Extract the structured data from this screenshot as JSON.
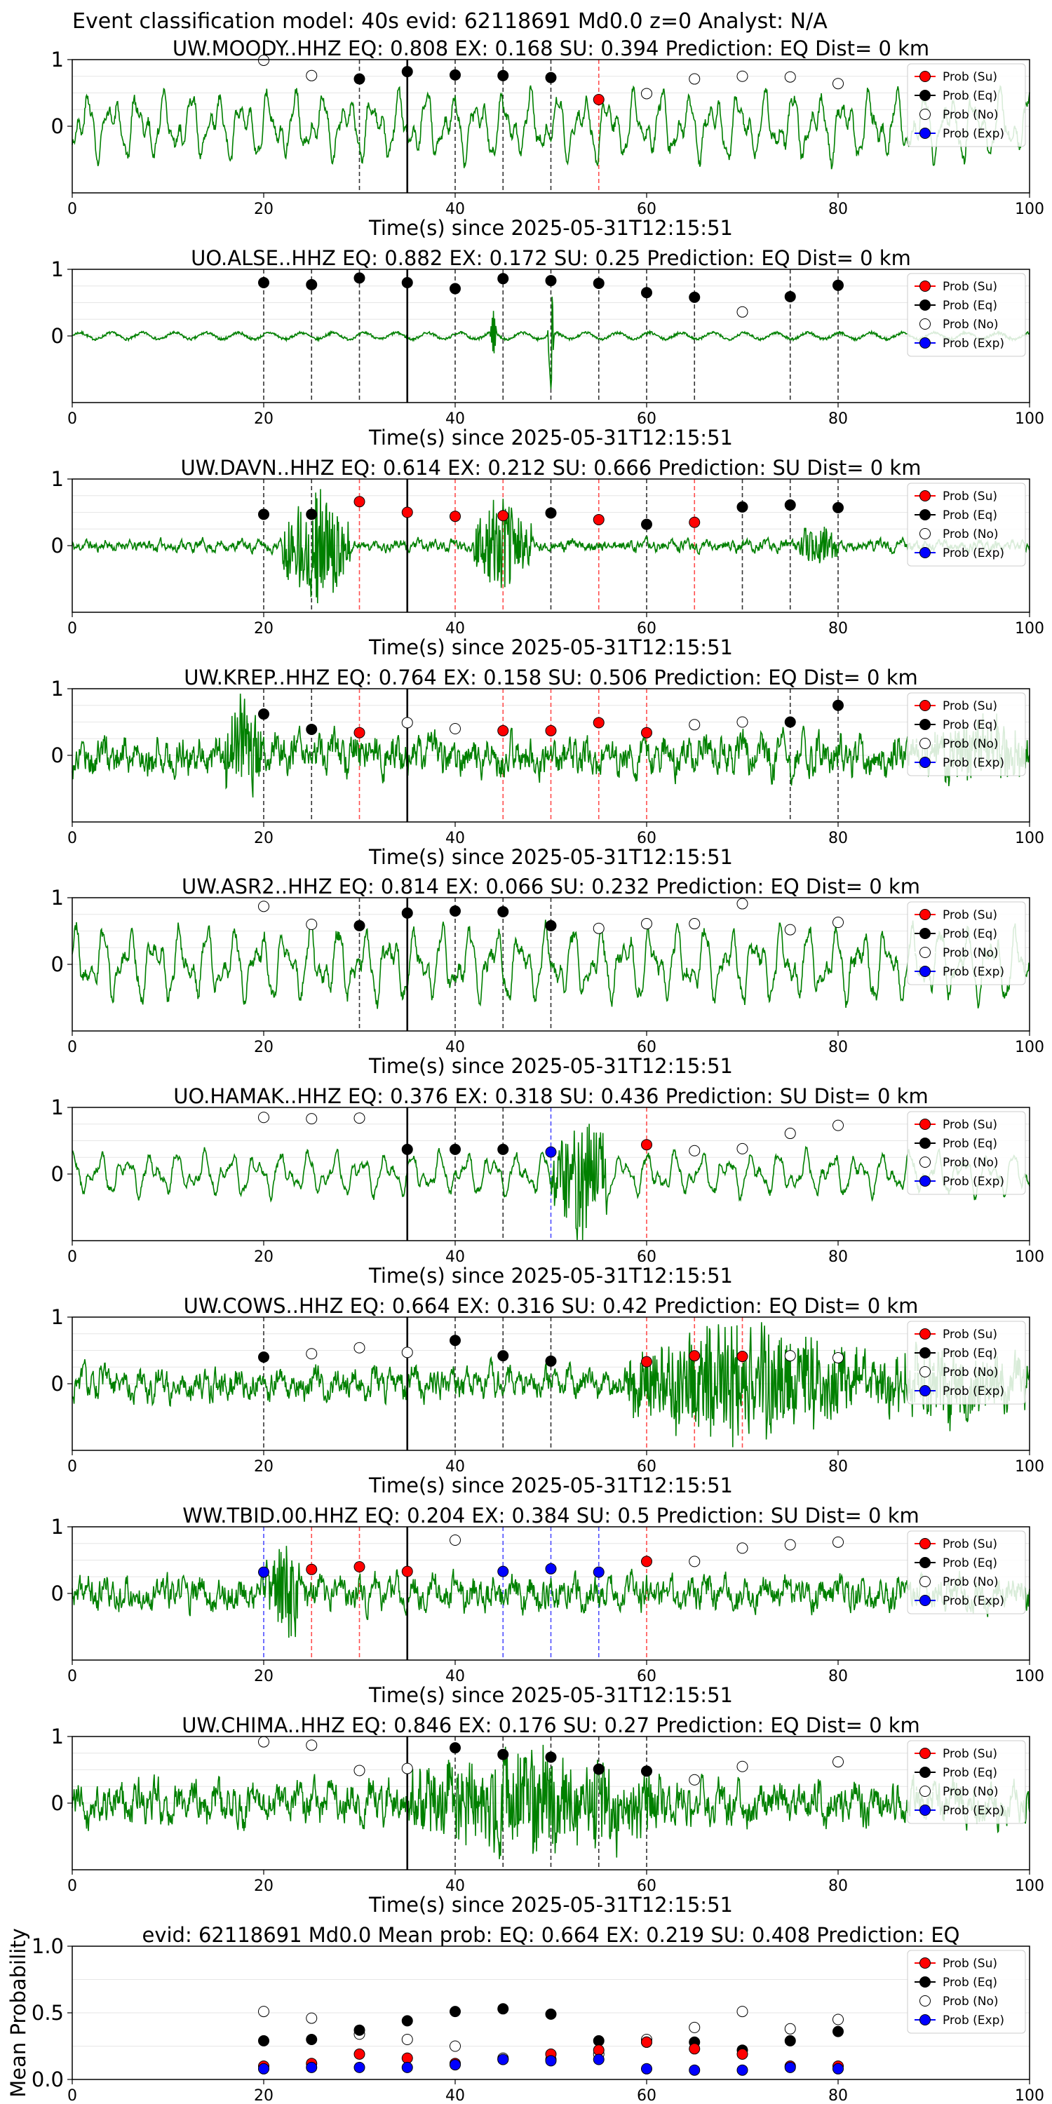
{
  "figure": {
    "suptitle": "Event classification model: 40s evid: 62118691 Md0.0 z=0 Analyst: N/A"
  },
  "legend_labels": [
    "Prob (Su)",
    "Prob (Eq)",
    "Prob (No)",
    "Prob (Exp)"
  ],
  "colors": {
    "su": "#ff0000",
    "eq": "#000000",
    "no": "#ffffff",
    "exp": "#0000ff",
    "waveform": "#008000",
    "pick": "#000000"
  },
  "chart_data": [
    {
      "type": "line",
      "title": "UW.MOODY..HHZ   EQ: 0.808  EX: 0.168  SU: 0.394   Prediction: EQ    Dist= 0 km",
      "xlabel": "Time(s) since 2025-05-31T12:15:51",
      "xlim": [
        0,
        100
      ],
      "ylim": [
        -1,
        1
      ],
      "xticks": [
        "0",
        "20",
        "40",
        "60",
        "80",
        "100"
      ],
      "yticks": [
        "1",
        "0"
      ],
      "pick_time": 35,
      "waveform": {
        "amplitude": 0.55,
        "style": "smooth",
        "seed": 3
      },
      "points": [
        {
          "t": 20,
          "class": "no",
          "p": 0.99
        },
        {
          "t": 25,
          "class": "no",
          "p": 0.76
        },
        {
          "t": 30,
          "class": "eq",
          "p": 0.71
        },
        {
          "t": 35,
          "class": "eq",
          "p": 0.82
        },
        {
          "t": 40,
          "class": "eq",
          "p": 0.77
        },
        {
          "t": 45,
          "class": "eq",
          "p": 0.76
        },
        {
          "t": 50,
          "class": "eq",
          "p": 0.73
        },
        {
          "t": 55,
          "class": "su",
          "p": 0.4
        },
        {
          "t": 60,
          "class": "no",
          "p": 0.49
        },
        {
          "t": 65,
          "class": "no",
          "p": 0.71
        },
        {
          "t": 70,
          "class": "no",
          "p": 0.75
        },
        {
          "t": 75,
          "class": "no",
          "p": 0.74
        },
        {
          "t": 80,
          "class": "no",
          "p": 0.64
        }
      ]
    },
    {
      "type": "line",
      "title": "UO.ALSE..HHZ   EQ: 0.882  EX: 0.172  SU: 0.25   Prediction: EQ    Dist= 0 km",
      "xlabel": "Time(s) since 2025-05-31T12:15:51",
      "xlim": [
        0,
        100
      ],
      "ylim": [
        -1,
        1
      ],
      "xticks": [
        "0",
        "20",
        "40",
        "60",
        "80",
        "100"
      ],
      "yticks": [
        "1",
        "0"
      ],
      "pick_time": 35,
      "waveform": {
        "amplitude": 0.08,
        "style": "quiet",
        "seed": 7,
        "spikes": [
          [
            44,
            0.35
          ],
          [
            50,
            0.85
          ]
        ]
      },
      "points": [
        {
          "t": 20,
          "class": "eq",
          "p": 0.8
        },
        {
          "t": 25,
          "class": "eq",
          "p": 0.77
        },
        {
          "t": 30,
          "class": "eq",
          "p": 0.87
        },
        {
          "t": 35,
          "class": "eq",
          "p": 0.8
        },
        {
          "t": 40,
          "class": "eq",
          "p": 0.71
        },
        {
          "t": 45,
          "class": "eq",
          "p": 0.86
        },
        {
          "t": 50,
          "class": "eq",
          "p": 0.83
        },
        {
          "t": 55,
          "class": "eq",
          "p": 0.79
        },
        {
          "t": 60,
          "class": "eq",
          "p": 0.65
        },
        {
          "t": 65,
          "class": "eq",
          "p": 0.58
        },
        {
          "t": 70,
          "class": "no",
          "p": 0.36
        },
        {
          "t": 75,
          "class": "eq",
          "p": 0.59
        },
        {
          "t": 80,
          "class": "eq",
          "p": 0.76
        }
      ]
    },
    {
      "type": "line",
      "title": "UW.DAVN..HHZ   EQ: 0.614  EX: 0.212  SU: 0.666   Prediction: SU    Dist= 0 km",
      "xlabel": "Time(s) since 2025-05-31T12:15:51",
      "xlim": [
        0,
        100
      ],
      "ylim": [
        -1,
        1
      ],
      "xticks": [
        "0",
        "20",
        "40",
        "60",
        "80",
        "100"
      ],
      "yticks": [
        "1",
        "0"
      ],
      "pick_time": 35,
      "waveform": {
        "amplitude": 0.1,
        "style": "noisy",
        "seed": 11,
        "bursts": [
          [
            22,
            29,
            0.9
          ],
          [
            42,
            48,
            0.75
          ],
          [
            76,
            80,
            0.35
          ]
        ]
      },
      "points": [
        {
          "t": 20,
          "class": "eq",
          "p": 0.47
        },
        {
          "t": 25,
          "class": "eq",
          "p": 0.47
        },
        {
          "t": 30,
          "class": "su",
          "p": 0.66
        },
        {
          "t": 35,
          "class": "su",
          "p": 0.5
        },
        {
          "t": 40,
          "class": "su",
          "p": 0.44
        },
        {
          "t": 45,
          "class": "su",
          "p": 0.45
        },
        {
          "t": 50,
          "class": "eq",
          "p": 0.49
        },
        {
          "t": 55,
          "class": "su",
          "p": 0.39
        },
        {
          "t": 60,
          "class": "eq",
          "p": 0.32
        },
        {
          "t": 65,
          "class": "su",
          "p": 0.35
        },
        {
          "t": 70,
          "class": "eq",
          "p": 0.58
        },
        {
          "t": 75,
          "class": "eq",
          "p": 0.61
        },
        {
          "t": 80,
          "class": "eq",
          "p": 0.57
        }
      ]
    },
    {
      "type": "line",
      "title": "UW.KREP..HHZ   EQ: 0.764  EX: 0.158  SU: 0.506   Prediction: EQ    Dist= 0 km",
      "xlabel": "Time(s) since 2025-05-31T12:15:51",
      "xlim": [
        0,
        100
      ],
      "ylim": [
        -1,
        1
      ],
      "xticks": [
        "0",
        "20",
        "40",
        "60",
        "80",
        "100"
      ],
      "yticks": [
        "1",
        "0"
      ],
      "pick_time": 35,
      "waveform": {
        "amplitude": 0.35,
        "style": "noisy",
        "seed": 17,
        "bursts": [
          [
            16,
            20,
            0.8
          ],
          [
            90,
            100,
            0.45
          ]
        ]
      },
      "points": [
        {
          "t": 20,
          "class": "eq",
          "p": 0.62
        },
        {
          "t": 25,
          "class": "eq",
          "p": 0.39
        },
        {
          "t": 30,
          "class": "su",
          "p": 0.34
        },
        {
          "t": 35,
          "class": "no",
          "p": 0.49
        },
        {
          "t": 40,
          "class": "no",
          "p": 0.4
        },
        {
          "t": 45,
          "class": "su",
          "p": 0.37
        },
        {
          "t": 50,
          "class": "su",
          "p": 0.37
        },
        {
          "t": 55,
          "class": "su",
          "p": 0.49
        },
        {
          "t": 60,
          "class": "su",
          "p": 0.34
        },
        {
          "t": 65,
          "class": "no",
          "p": 0.46
        },
        {
          "t": 70,
          "class": "no",
          "p": 0.5
        },
        {
          "t": 75,
          "class": "eq",
          "p": 0.5
        },
        {
          "t": 80,
          "class": "eq",
          "p": 0.75
        }
      ]
    },
    {
      "type": "line",
      "title": "UW.ASR2..HHZ   EQ: 0.814  EX: 0.066  SU: 0.232   Prediction: EQ    Dist= 0 km",
      "xlabel": "Time(s) since 2025-05-31T12:15:51",
      "xlim": [
        0,
        100
      ],
      "ylim": [
        -1,
        1
      ],
      "xticks": [
        "0",
        "20",
        "40",
        "60",
        "80",
        "100"
      ],
      "yticks": [
        "1",
        "0"
      ],
      "pick_time": 35,
      "waveform": {
        "amplitude": 0.6,
        "style": "smooth",
        "seed": 23
      },
      "points": [
        {
          "t": 20,
          "class": "no",
          "p": 0.87
        },
        {
          "t": 25,
          "class": "no",
          "p": 0.6
        },
        {
          "t": 30,
          "class": "eq",
          "p": 0.58
        },
        {
          "t": 35,
          "class": "eq",
          "p": 0.77
        },
        {
          "t": 40,
          "class": "eq",
          "p": 0.8
        },
        {
          "t": 45,
          "class": "eq",
          "p": 0.79
        },
        {
          "t": 50,
          "class": "eq",
          "p": 0.58
        },
        {
          "t": 55,
          "class": "no",
          "p": 0.54
        },
        {
          "t": 60,
          "class": "no",
          "p": 0.61
        },
        {
          "t": 65,
          "class": "no",
          "p": 0.61
        },
        {
          "t": 70,
          "class": "no",
          "p": 0.91
        },
        {
          "t": 75,
          "class": "no",
          "p": 0.52
        },
        {
          "t": 80,
          "class": "no",
          "p": 0.63
        }
      ]
    },
    {
      "type": "line",
      "title": "UO.HAMAK..HHZ   EQ: 0.376  EX: 0.318  SU: 0.436   Prediction: SU    Dist= 0 km",
      "xlabel": "Time(s) since 2025-05-31T12:15:51",
      "xlim": [
        0,
        100
      ],
      "ylim": [
        -1,
        1
      ],
      "xticks": [
        "0",
        "20",
        "40",
        "60",
        "80",
        "100"
      ],
      "yticks": [
        "1",
        "0"
      ],
      "pick_time": 35,
      "waveform": {
        "amplitude": 0.35,
        "style": "smooth",
        "seed": 29,
        "bursts": [
          [
            50,
            56,
            0.95
          ]
        ]
      },
      "points": [
        {
          "t": 20,
          "class": "no",
          "p": 0.85
        },
        {
          "t": 25,
          "class": "no",
          "p": 0.83
        },
        {
          "t": 30,
          "class": "no",
          "p": 0.84
        },
        {
          "t": 35,
          "class": "eq",
          "p": 0.37
        },
        {
          "t": 40,
          "class": "eq",
          "p": 0.37
        },
        {
          "t": 45,
          "class": "eq",
          "p": 0.37
        },
        {
          "t": 50,
          "class": "exp",
          "p": 0.33
        },
        {
          "t": 60,
          "class": "su",
          "p": 0.44
        },
        {
          "t": 65,
          "class": "no",
          "p": 0.35
        },
        {
          "t": 70,
          "class": "no",
          "p": 0.38
        },
        {
          "t": 75,
          "class": "no",
          "p": 0.61
        },
        {
          "t": 80,
          "class": "no",
          "p": 0.73
        }
      ]
    },
    {
      "type": "line",
      "title": "UW.COWS..HHZ   EQ: 0.664  EX: 0.316  SU: 0.42   Prediction: EQ    Dist= 0 km",
      "xlabel": "Time(s) since 2025-05-31T12:15:51",
      "xlim": [
        0,
        100
      ],
      "ylim": [
        -1,
        1
      ],
      "xticks": [
        "0",
        "20",
        "40",
        "60",
        "80",
        "100"
      ],
      "yticks": [
        "1",
        "0"
      ],
      "pick_time": 35,
      "waveform": {
        "amplitude": 0.28,
        "style": "noisy",
        "seed": 31,
        "bursts": [
          [
            58,
            82,
            0.9
          ],
          [
            82,
            100,
            0.45
          ]
        ]
      },
      "points": [
        {
          "t": 20,
          "class": "eq",
          "p": 0.4
        },
        {
          "t": 25,
          "class": "no",
          "p": 0.45
        },
        {
          "t": 30,
          "class": "no",
          "p": 0.54
        },
        {
          "t": 35,
          "class": "no",
          "p": 0.47
        },
        {
          "t": 40,
          "class": "eq",
          "p": 0.65
        },
        {
          "t": 45,
          "class": "eq",
          "p": 0.42
        },
        {
          "t": 50,
          "class": "eq",
          "p": 0.34
        },
        {
          "t": 60,
          "class": "su",
          "p": 0.33
        },
        {
          "t": 65,
          "class": "su",
          "p": 0.42
        },
        {
          "t": 70,
          "class": "su",
          "p": 0.41
        },
        {
          "t": 75,
          "class": "no",
          "p": 0.42
        },
        {
          "t": 80,
          "class": "no",
          "p": 0.39
        }
      ]
    },
    {
      "type": "line",
      "title": "WW.TBID.00.HHZ   EQ: 0.204  EX: 0.384  SU: 0.5   Prediction: SU    Dist= 0 km",
      "xlabel": "Time(s) since 2025-05-31T12:15:51",
      "xlim": [
        0,
        100
      ],
      "ylim": [
        -1,
        1
      ],
      "xticks": [
        "0",
        "20",
        "40",
        "60",
        "80",
        "100"
      ],
      "yticks": [
        "1",
        "0"
      ],
      "pick_time": 35,
      "waveform": {
        "amplitude": 0.3,
        "style": "noisy",
        "seed": 37,
        "bursts": [
          [
            20,
            24,
            0.75
          ]
        ]
      },
      "points": [
        {
          "t": 20,
          "class": "exp",
          "p": 0.32
        },
        {
          "t": 25,
          "class": "su",
          "p": 0.36
        },
        {
          "t": 30,
          "class": "su",
          "p": 0.4
        },
        {
          "t": 35,
          "class": "su",
          "p": 0.33
        },
        {
          "t": 40,
          "class": "no",
          "p": 0.8
        },
        {
          "t": 45,
          "class": "exp",
          "p": 0.33
        },
        {
          "t": 50,
          "class": "exp",
          "p": 0.37
        },
        {
          "t": 55,
          "class": "exp",
          "p": 0.32
        },
        {
          "t": 60,
          "class": "su",
          "p": 0.48
        },
        {
          "t": 65,
          "class": "no",
          "p": 0.48
        },
        {
          "t": 70,
          "class": "no",
          "p": 0.68
        },
        {
          "t": 75,
          "class": "no",
          "p": 0.73
        },
        {
          "t": 80,
          "class": "no",
          "p": 0.77
        }
      ]
    },
    {
      "type": "line",
      "title": "UW.CHIMA..HHZ   EQ: 0.846  EX: 0.176  SU: 0.27   Prediction: EQ    Dist= 0 km",
      "xlabel": "Time(s) since 2025-05-31T12:15:51",
      "xlim": [
        0,
        100
      ],
      "ylim": [
        -1,
        1
      ],
      "xticks": [
        "0",
        "20",
        "40",
        "60",
        "80",
        "100"
      ],
      "yticks": [
        "1",
        "0"
      ],
      "pick_time": 35,
      "waveform": {
        "amplitude": 0.38,
        "style": "noisy",
        "seed": 41,
        "bursts": [
          [
            35,
            62,
            0.7
          ]
        ]
      },
      "points": [
        {
          "t": 20,
          "class": "no",
          "p": 0.92
        },
        {
          "t": 25,
          "class": "no",
          "p": 0.87
        },
        {
          "t": 30,
          "class": "no",
          "p": 0.49
        },
        {
          "t": 35,
          "class": "no",
          "p": 0.52
        },
        {
          "t": 40,
          "class": "eq",
          "p": 0.83
        },
        {
          "t": 45,
          "class": "eq",
          "p": 0.73
        },
        {
          "t": 50,
          "class": "eq",
          "p": 0.69
        },
        {
          "t": 55,
          "class": "eq",
          "p": 0.51
        },
        {
          "t": 60,
          "class": "eq",
          "p": 0.48
        },
        {
          "t": 65,
          "class": "no",
          "p": 0.35
        },
        {
          "t": 70,
          "class": "no",
          "p": 0.55
        },
        {
          "t": 80,
          "class": "no",
          "p": 0.62
        }
      ]
    },
    {
      "type": "scatter",
      "title": "evid: 62118691  Md0.0   Mean prob:   EQ: 0.664  EX: 0.219  SU: 0.408   Prediction: EQ",
      "ylabel": "Mean Probability",
      "xlim": [
        0,
        100
      ],
      "ylim": [
        0,
        1
      ],
      "xticks": [
        "0",
        "20",
        "40",
        "60",
        "80",
        "100"
      ],
      "yticks": [
        "0.0",
        "0.5",
        "1.0"
      ],
      "x": [
        20,
        25,
        30,
        35,
        40,
        45,
        50,
        55,
        60,
        65,
        70,
        75,
        80
      ],
      "series": [
        {
          "key": "no",
          "values": [
            0.51,
            0.46,
            0.34,
            0.3,
            0.25,
            0.16,
            0.15,
            0.19,
            0.3,
            0.39,
            0.51,
            0.38,
            0.45
          ]
        },
        {
          "key": "eq",
          "values": [
            0.29,
            0.3,
            0.37,
            0.44,
            0.51,
            0.53,
            0.49,
            0.29,
            0.28,
            0.28,
            0.22,
            0.29,
            0.36
          ]
        },
        {
          "key": "su",
          "values": [
            0.1,
            0.12,
            0.19,
            0.16,
            0.12,
            0.15,
            0.19,
            0.22,
            0.28,
            0.23,
            0.19,
            0.1,
            0.1
          ]
        },
        {
          "key": "exp",
          "values": [
            0.08,
            0.09,
            0.09,
            0.09,
            0.11,
            0.15,
            0.14,
            0.15,
            0.08,
            0.07,
            0.07,
            0.09,
            0.08
          ]
        }
      ]
    }
  ]
}
